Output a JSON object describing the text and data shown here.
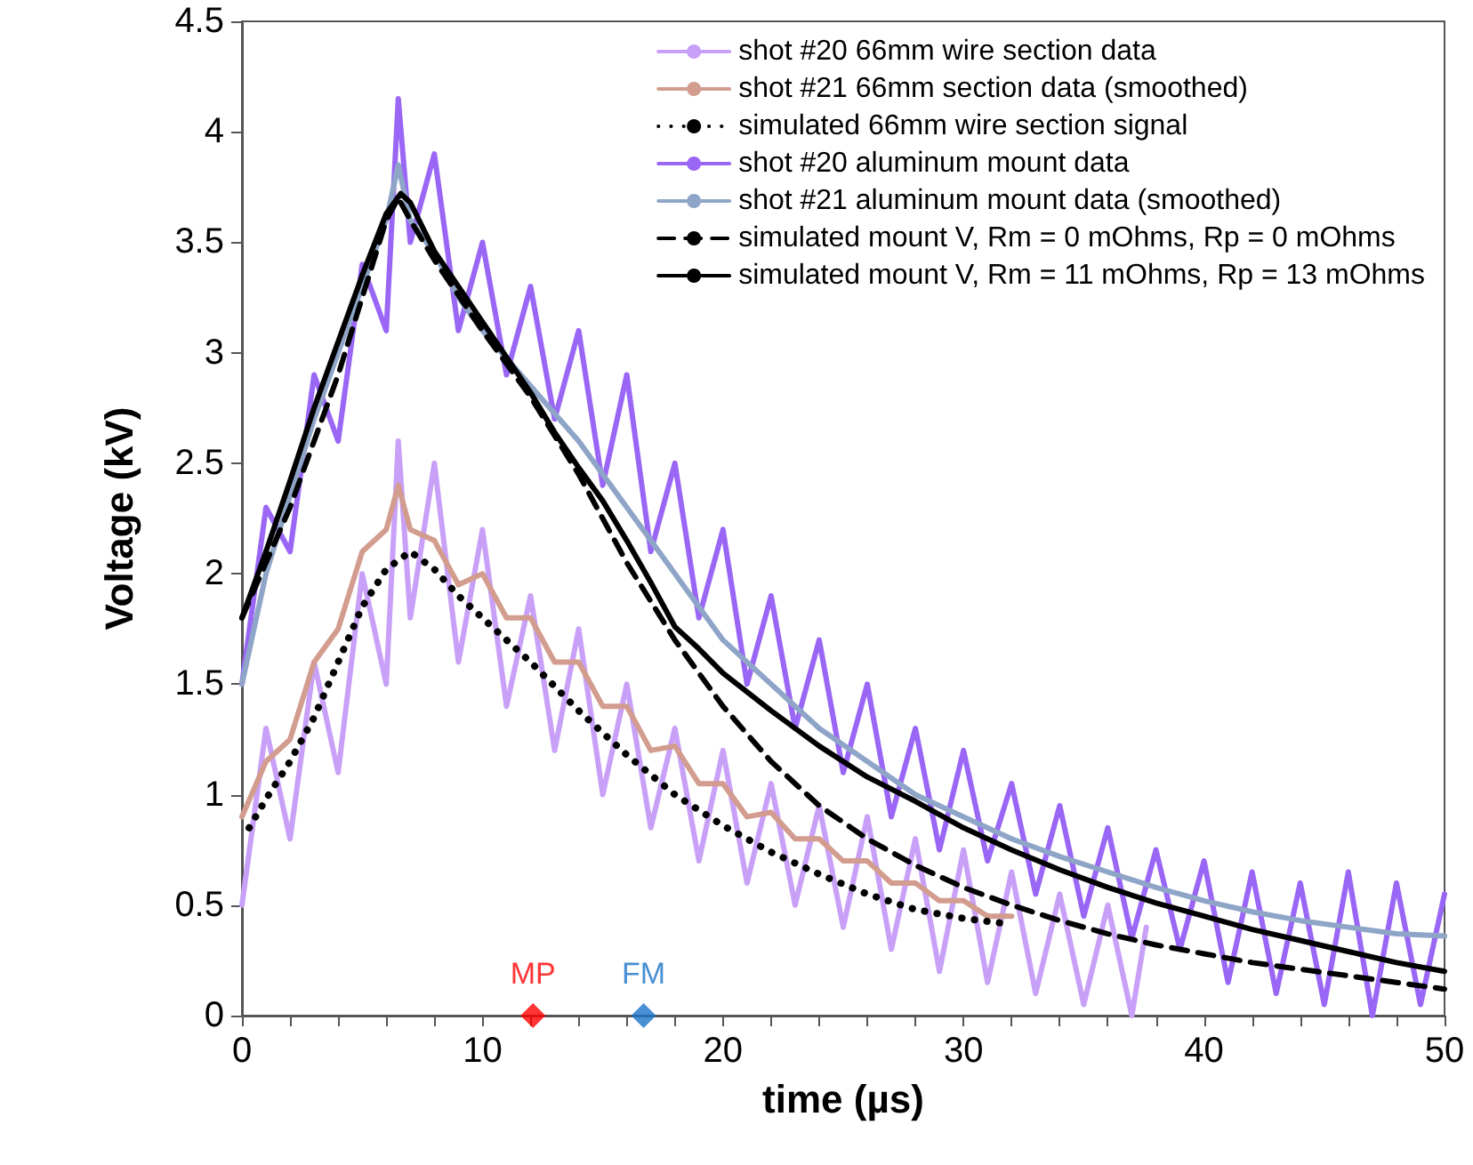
{
  "chart_data": {
    "type": "line",
    "xlabel": "time (µs)",
    "ylabel": "Voltage (kV)",
    "xlim": [
      0,
      50
    ],
    "ylim": [
      0,
      4.5
    ],
    "xticks": [
      0,
      {
        "value": 2,
        "label": null
      },
      {
        "value": 4,
        "label": null
      },
      {
        "value": 6,
        "label": null
      },
      {
        "value": 8,
        "label": null
      },
      10,
      {
        "value": 12,
        "label": null
      },
      {
        "value": 14,
        "label": null
      },
      {
        "value": 16,
        "label": null
      },
      {
        "value": 18,
        "label": null
      },
      20,
      {
        "value": 22,
        "label": null
      },
      {
        "value": 24,
        "label": null
      },
      {
        "value": 26,
        "label": null
      },
      {
        "value": 28,
        "label": null
      },
      30,
      {
        "value": 32,
        "label": null
      },
      {
        "value": 34,
        "label": null
      },
      {
        "value": 36,
        "label": null
      },
      {
        "value": 38,
        "label": null
      },
      40,
      {
        "value": 42,
        "label": null
      },
      {
        "value": 44,
        "label": null
      },
      {
        "value": 46,
        "label": null
      },
      {
        "value": 48,
        "label": null
      },
      50
    ],
    "yticks": [
      0,
      0.5,
      1,
      1.5,
      2,
      2.5,
      3,
      3.5,
      4,
      4.5
    ],
    "grid": false,
    "legend": "top right",
    "marker": "none",
    "line_style": "solid",
    "series": [
      {
        "name": "shot #20 66mm wire section data",
        "color": "#c8a0f8",
        "x": [
          0,
          1,
          2,
          3,
          4,
          5,
          6,
          6.5,
          7,
          8,
          9,
          10,
          11,
          12,
          13,
          14,
          15,
          16,
          17,
          18,
          19,
          20,
          21,
          22,
          23,
          24,
          25,
          26,
          27,
          28,
          29,
          30,
          31,
          32,
          33,
          34,
          35,
          36,
          37,
          37.6
        ],
        "values": [
          0.5,
          1.3,
          0.8,
          1.6,
          1.1,
          2.0,
          1.5,
          2.6,
          1.8,
          2.5,
          1.6,
          2.2,
          1.4,
          1.9,
          1.2,
          1.75,
          1.0,
          1.5,
          0.85,
          1.3,
          0.7,
          1.2,
          0.6,
          1.05,
          0.5,
          0.95,
          0.4,
          0.9,
          0.3,
          0.8,
          0.2,
          0.75,
          0.15,
          0.65,
          0.1,
          0.55,
          0.05,
          0.5,
          0,
          0.4
        ]
      },
      {
        "name": "shot #21 66mm section data (smoothed)",
        "color": "#d29c8e",
        "x": [
          0,
          1,
          2,
          3,
          4,
          5,
          6,
          6.5,
          7,
          8,
          9,
          10,
          11,
          12,
          13,
          14,
          15,
          16,
          17,
          18,
          19,
          20,
          21,
          22,
          23,
          24,
          25,
          26,
          27,
          28,
          29,
          30,
          31,
          32
        ],
        "values": [
          0.9,
          1.15,
          1.25,
          1.6,
          1.75,
          2.1,
          2.2,
          2.4,
          2.2,
          2.15,
          1.95,
          2.0,
          1.8,
          1.8,
          1.6,
          1.6,
          1.4,
          1.4,
          1.2,
          1.22,
          1.05,
          1.05,
          0.9,
          0.92,
          0.8,
          0.8,
          0.7,
          0.7,
          0.6,
          0.6,
          0.52,
          0.52,
          0.45,
          0.45
        ]
      },
      {
        "name": "simulated 66mm wire section signal",
        "color": "#000000",
        "line_style": "dotted",
        "x": [
          0.3,
          1,
          2,
          3,
          4,
          5,
          6,
          7,
          8,
          9,
          10,
          12,
          14,
          16,
          18,
          20,
          22,
          24,
          26,
          28,
          30,
          31.5
        ],
        "values": [
          0.85,
          0.98,
          1.15,
          1.35,
          1.6,
          1.85,
          2.02,
          2.1,
          2.02,
          1.9,
          1.8,
          1.6,
          1.38,
          1.18,
          1.0,
          0.86,
          0.74,
          0.64,
          0.55,
          0.48,
          0.44,
          0.42
        ]
      },
      {
        "name": "shot #20 aluminum mount data",
        "color": "#9966f6",
        "x": [
          0,
          1,
          2,
          3,
          4,
          5,
          6,
          6.5,
          7,
          8,
          9,
          10,
          11,
          12,
          13,
          14,
          15,
          16,
          17,
          18,
          19,
          20,
          21,
          22,
          23,
          24,
          25,
          26,
          27,
          28,
          29,
          30,
          31,
          32,
          33,
          34,
          35,
          36,
          37,
          38,
          39,
          40,
          41,
          42,
          43,
          44,
          45,
          46,
          47,
          48,
          49,
          50
        ],
        "values": [
          1.5,
          2.3,
          2.1,
          2.9,
          2.6,
          3.4,
          3.1,
          4.15,
          3.5,
          3.9,
          3.1,
          3.5,
          2.9,
          3.3,
          2.7,
          3.1,
          2.4,
          2.9,
          2.1,
          2.5,
          1.8,
          2.2,
          1.5,
          1.9,
          1.3,
          1.7,
          1.1,
          1.5,
          0.9,
          1.3,
          0.75,
          1.2,
          0.7,
          1.05,
          0.55,
          0.95,
          0.45,
          0.85,
          0.35,
          0.75,
          0.3,
          0.7,
          0.15,
          0.65,
          0.1,
          0.6,
          0.05,
          0.65,
          0,
          0.6,
          0.05,
          0.55
        ]
      },
      {
        "name": "shot #21 aluminum mount data (smoothed)",
        "color": "#8fa5c8",
        "x": [
          0,
          1,
          2,
          3,
          4,
          5,
          6,
          6.5,
          7,
          8,
          9,
          10,
          12,
          14,
          16,
          18,
          20,
          22,
          24,
          26,
          28,
          30,
          32,
          34,
          36,
          38,
          40,
          42,
          44,
          46,
          48,
          50
        ],
        "values": [
          1.5,
          2.0,
          2.35,
          2.7,
          3.0,
          3.3,
          3.6,
          3.85,
          3.6,
          3.45,
          3.25,
          3.1,
          2.85,
          2.6,
          2.3,
          2.0,
          1.7,
          1.5,
          1.3,
          1.15,
          1.0,
          0.9,
          0.8,
          0.72,
          0.65,
          0.58,
          0.52,
          0.47,
          0.43,
          0.4,
          0.37,
          0.36
        ]
      },
      {
        "name": "simulated mount V, Rm = 0 mOhms, Rp = 0 mOhms",
        "color": "#000000",
        "line_style": "dashed",
        "x": [
          0,
          2,
          4,
          5,
          6,
          6.5,
          7,
          8,
          10,
          12,
          14,
          16,
          18,
          20,
          22,
          24,
          26,
          28,
          30,
          32,
          34,
          36,
          38,
          40,
          42,
          44,
          46,
          48,
          50
        ],
        "values": [
          1.8,
          2.3,
          2.9,
          3.25,
          3.6,
          3.7,
          3.6,
          3.42,
          3.1,
          2.8,
          2.45,
          2.05,
          1.7,
          1.4,
          1.15,
          0.95,
          0.8,
          0.68,
          0.58,
          0.5,
          0.43,
          0.37,
          0.32,
          0.28,
          0.24,
          0.21,
          0.18,
          0.15,
          0.12
        ]
      },
      {
        "name": "simulated mount V, Rm = 11 mOhms, Rp = 13 mOhms",
        "color": "#000000",
        "x": [
          0,
          1,
          2,
          3,
          4,
          5,
          6,
          6.6,
          7,
          8,
          9,
          10,
          11,
          12,
          13,
          14,
          15,
          16,
          17,
          18,
          19,
          20,
          22,
          24,
          26,
          28,
          30,
          32,
          34,
          36,
          38,
          40,
          42,
          44,
          46,
          48,
          50
        ],
        "values": [
          1.8,
          2.1,
          2.42,
          2.75,
          3.05,
          3.35,
          3.63,
          3.72,
          3.68,
          3.46,
          3.3,
          3.14,
          2.98,
          2.82,
          2.64,
          2.48,
          2.33,
          2.15,
          1.96,
          1.76,
          1.66,
          1.55,
          1.38,
          1.22,
          1.08,
          0.97,
          0.85,
          0.75,
          0.66,
          0.58,
          0.51,
          0.45,
          0.39,
          0.34,
          0.29,
          0.24,
          0.2
        ]
      },
      {
        "name": "MP",
        "type": "scatter",
        "marker": "diamond",
        "color": "#ff0000",
        "x": [
          12.1
        ],
        "values": [
          0
        ]
      },
      {
        "name": "FM",
        "type": "scatter",
        "marker": "diamond",
        "color": "#1a73c8",
        "x": [
          16.7
        ],
        "values": [
          0
        ]
      }
    ]
  }
}
